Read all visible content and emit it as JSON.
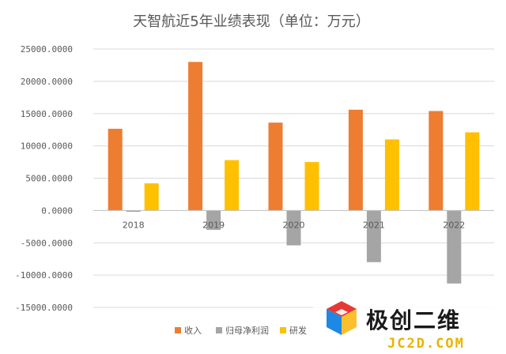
{
  "chart_data": {
    "type": "bar",
    "title": "天智航近5年业绩表现（单位：万元）",
    "categories": [
      "2018",
      "2019",
      "2020",
      "2021",
      "2022"
    ],
    "series": [
      {
        "name": "收入",
        "color": "#ed7d31",
        "values": [
          12650,
          23000,
          13600,
          15600,
          15400
        ]
      },
      {
        "name": "归母净利润",
        "color": "#a5a5a5",
        "values": [
          -200,
          -3000,
          -5400,
          -8000,
          -11300
        ]
      },
      {
        "name": "研发",
        "color": "#ffc000",
        "values": [
          4200,
          7800,
          7500,
          11000,
          12100
        ]
      }
    ],
    "y_ticks": [
      "25000.0000",
      "20000.0000",
      "15000.0000",
      "10000.0000",
      "5000.0000",
      "0.0000",
      "-5000.0000",
      "-10000.0000",
      "-15000.0000"
    ],
    "ylim": [
      -15000,
      25000
    ],
    "grid": true,
    "legend": "bottom"
  },
  "watermark": {
    "text": "极创二维",
    "sub": "JC2D.COM",
    "icon": "cube-logo-icon",
    "colors": {
      "top": "#e53935",
      "left": "#1e88e5",
      "right": "#fbc02d"
    }
  }
}
